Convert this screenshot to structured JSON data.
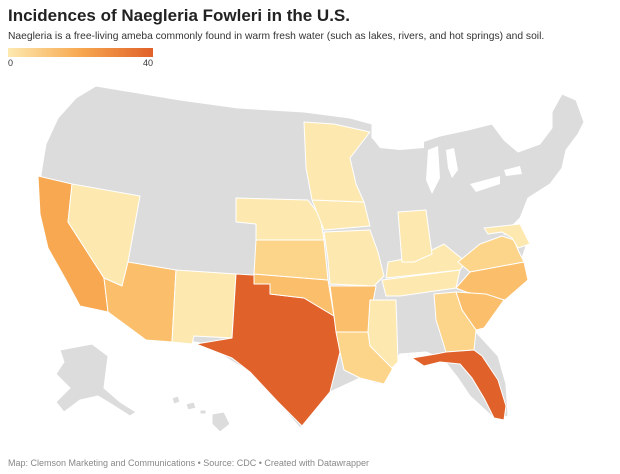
{
  "title": "Incidences of Naegleria Fowleri in the U.S.",
  "subtitle": "Naegleria is a free-living ameba commonly found in warm fresh water (such as lakes, rivers, and hot springs) and soil.",
  "legend": {
    "min_label": "0",
    "max_label": "40",
    "min": 0,
    "max": 40,
    "color_low": "#fde9b0",
    "color_mid": "#f7a850",
    "color_high": "#e0612a"
  },
  "colors": {
    "no_data": "#dcdcdc",
    "level_1": "#fde9b0",
    "level_2": "#fdd58a",
    "level_3": "#fbbf6c",
    "level_4": "#f7a850",
    "level_5": "#e0612a",
    "border": "#ffffff"
  },
  "states": [
    {
      "name": "California",
      "level": 4
    },
    {
      "name": "Nevada",
      "level": 1
    },
    {
      "name": "Arizona",
      "level": 3
    },
    {
      "name": "New Mexico",
      "level": 1
    },
    {
      "name": "Texas",
      "level": 5
    },
    {
      "name": "Oklahoma",
      "level": 3
    },
    {
      "name": "Kansas",
      "level": 2
    },
    {
      "name": "Nebraska",
      "level": 1
    },
    {
      "name": "Iowa",
      "level": 1
    },
    {
      "name": "Minnesota",
      "level": 1
    },
    {
      "name": "Missouri",
      "level": 1
    },
    {
      "name": "Arkansas",
      "level": 3
    },
    {
      "name": "Louisiana",
      "level": 2
    },
    {
      "name": "Mississippi",
      "level": 1
    },
    {
      "name": "Tennessee",
      "level": 1
    },
    {
      "name": "Kentucky",
      "level": 1
    },
    {
      "name": "Indiana",
      "level": 1
    },
    {
      "name": "Virginia",
      "level": 2
    },
    {
      "name": "Maryland",
      "level": 1
    },
    {
      "name": "North Carolina",
      "level": 3
    },
    {
      "name": "South Carolina",
      "level": 3
    },
    {
      "name": "Georgia",
      "level": 2
    },
    {
      "name": "Florida",
      "level": 5
    }
  ],
  "footer": {
    "map": "Map: Clemson Marketing and Communications",
    "source": "Source: CDC",
    "credit": "Created with Datawrapper",
    "separator": " • "
  }
}
